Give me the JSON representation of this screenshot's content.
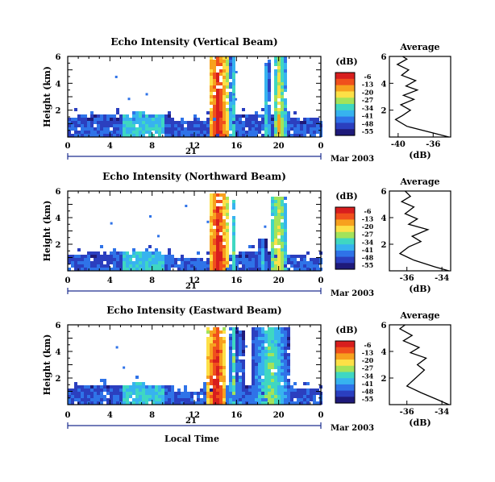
{
  "figure": {
    "xaxis_label": "Local Time",
    "date_label": "Mar 2003",
    "day_label": "21"
  },
  "colorbar": {
    "unit_label": "(dB)",
    "ticks": [
      "-6",
      "-13",
      "-20",
      "-27",
      "-34",
      "-41",
      "-48",
      "-55"
    ],
    "colors": [
      "#d81e1e",
      "#f0501c",
      "#f7a11e",
      "#fde047",
      "#a3e35a",
      "#3fd7c2",
      "#37b3ef",
      "#2f73e8",
      "#2b3fbf",
      "#1f1a7a"
    ]
  },
  "chart_data": [
    {
      "type": "heatmap",
      "title": "Echo Intensity (Vertical Beam)",
      "ylabel": "Height (km)",
      "xlim": [
        0,
        24
      ],
      "ylim": [
        0,
        6
      ],
      "x_ticks": [
        "0",
        "4",
        "8",
        "12",
        "16",
        "20",
        "0"
      ],
      "y_ticks": [
        "2",
        "4",
        "6"
      ],
      "value_range_dB": [
        -55,
        -6
      ],
      "boundary_layer_top_km": 1.6,
      "echo_columns": [
        {
          "start_hr": 13.2,
          "end_hr": 15.0,
          "top_km": 6.0,
          "peak_dB": -6
        },
        {
          "start_hr": 15.2,
          "end_hr": 15.8,
          "top_km": 6.0,
          "peak_dB": -27
        },
        {
          "start_hr": 18.5,
          "end_hr": 19.0,
          "top_km": 5.8,
          "peak_dB": -27
        },
        {
          "start_hr": 19.3,
          "end_hr": 20.5,
          "top_km": 6.0,
          "peak_dB": -20
        }
      ],
      "profile": {
        "title": "Average",
        "xlabel": "(dB)",
        "x_ticks": [
          "-40",
          "-36"
        ],
        "y_ticks": [
          "2",
          "4",
          "6"
        ],
        "xlim": [
          -41,
          -34
        ],
        "ylim": [
          0,
          6
        ],
        "points": [
          [
            -34.2,
            0.0
          ],
          [
            -36.0,
            0.3
          ],
          [
            -39.0,
            0.8
          ],
          [
            -40.3,
            1.3
          ],
          [
            -39.5,
            1.6
          ],
          [
            -38.6,
            2.0
          ],
          [
            -39.7,
            2.4
          ],
          [
            -38.2,
            2.8
          ],
          [
            -39.4,
            3.1
          ],
          [
            -37.8,
            3.5
          ],
          [
            -39.1,
            3.8
          ],
          [
            -38.0,
            4.2
          ],
          [
            -39.6,
            4.6
          ],
          [
            -38.8,
            5.0
          ],
          [
            -40.1,
            5.4
          ],
          [
            -39.0,
            5.8
          ],
          [
            -39.5,
            6.0
          ]
        ]
      }
    },
    {
      "type": "heatmap",
      "title": "Echo Intensity (Northward Beam)",
      "ylabel": "Height (km)",
      "xlim": [
        0,
        24
      ],
      "ylim": [
        0,
        6
      ],
      "x_ticks": [
        "0",
        "4",
        "8",
        "12",
        "16",
        "20",
        "0"
      ],
      "y_ticks": [
        "2",
        "4",
        "6"
      ],
      "value_range_dB": [
        -55,
        -6
      ],
      "boundary_layer_top_km": 1.3,
      "echo_columns": [
        {
          "start_hr": 13.2,
          "end_hr": 15.0,
          "top_km": 6.0,
          "peak_dB": -6
        },
        {
          "start_hr": 15.3,
          "end_hr": 15.8,
          "top_km": 5.5,
          "peak_dB": -27
        },
        {
          "start_hr": 17.8,
          "end_hr": 18.8,
          "top_km": 2.6,
          "peak_dB": -34
        },
        {
          "start_hr": 19.0,
          "end_hr": 20.6,
          "top_km": 5.8,
          "peak_dB": -20
        }
      ],
      "profile": {
        "title": "Average",
        "xlabel": "(dB)",
        "x_ticks": [
          "-36",
          "-34"
        ],
        "y_ticks": [
          "2",
          "4",
          "6"
        ],
        "xlim": [
          -37,
          -33.5
        ],
        "ylim": [
          0,
          6
        ],
        "points": [
          [
            -33.6,
            0.0
          ],
          [
            -34.4,
            0.3
          ],
          [
            -35.6,
            0.8
          ],
          [
            -36.4,
            1.3
          ],
          [
            -35.9,
            1.8
          ],
          [
            -35.2,
            2.2
          ],
          [
            -35.7,
            2.6
          ],
          [
            -34.8,
            3.1
          ],
          [
            -35.9,
            3.5
          ],
          [
            -35.4,
            3.9
          ],
          [
            -36.1,
            4.3
          ],
          [
            -35.6,
            4.8
          ],
          [
            -36.3,
            5.2
          ],
          [
            -35.8,
            5.6
          ],
          [
            -36.1,
            6.0
          ]
        ]
      }
    },
    {
      "type": "heatmap",
      "title": "Echo Intensity (Eastward Beam)",
      "ylabel": "Height (km)",
      "xlim": [
        0,
        24
      ],
      "ylim": [
        0,
        6
      ],
      "x_ticks": [
        "0",
        "4",
        "8",
        "12",
        "16",
        "20",
        "0"
      ],
      "y_ticks": [
        "2",
        "4",
        "6"
      ],
      "value_range_dB": [
        -55,
        -6
      ],
      "boundary_layer_top_km": 1.4,
      "echo_columns": [
        {
          "start_hr": 13.0,
          "end_hr": 14.9,
          "top_km": 6.0,
          "peak_dB": -6
        },
        {
          "start_hr": 15.2,
          "end_hr": 15.9,
          "top_km": 6.0,
          "peak_dB": -27
        },
        {
          "start_hr": 16.0,
          "end_hr": 16.6,
          "top_km": 5.8,
          "peak_dB": -34
        },
        {
          "start_hr": 17.4,
          "end_hr": 20.8,
          "top_km": 6.0,
          "peak_dB": -27
        }
      ],
      "profile": {
        "title": "Average",
        "xlabel": "(dB)",
        "x_ticks": [
          "-36",
          "-34"
        ],
        "y_ticks": [
          "2",
          "4",
          "6"
        ],
        "xlim": [
          -37,
          -33.5
        ],
        "ylim": [
          0,
          6
        ],
        "points": [
          [
            -33.6,
            0.0
          ],
          [
            -34.3,
            0.4
          ],
          [
            -35.2,
            0.9
          ],
          [
            -36.0,
            1.4
          ],
          [
            -35.5,
            2.0
          ],
          [
            -35.0,
            2.6
          ],
          [
            -35.4,
            3.0
          ],
          [
            -34.9,
            3.5
          ],
          [
            -35.8,
            3.9
          ],
          [
            -35.3,
            4.3
          ],
          [
            -36.2,
            4.8
          ],
          [
            -35.7,
            5.2
          ],
          [
            -36.4,
            5.7
          ],
          [
            -36.1,
            6.0
          ]
        ]
      }
    }
  ]
}
